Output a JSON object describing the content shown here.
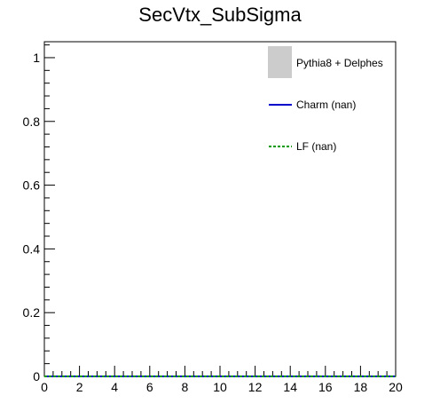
{
  "chart_data": {
    "type": "line",
    "title": "SecVtx_SubSigma",
    "xlabel": "",
    "ylabel": "",
    "xlim": [
      0,
      20
    ],
    "ylim": [
      0,
      1.05
    ],
    "x_ticks": [
      0,
      2,
      4,
      6,
      8,
      10,
      12,
      14,
      16,
      18,
      20
    ],
    "x_tick_labels": [
      "0",
      "2",
      "4",
      "6",
      "8",
      "10",
      "12",
      "14",
      "16",
      "18",
      "20"
    ],
    "y_ticks": [
      0,
      0.2,
      0.4,
      0.6,
      0.8,
      1
    ],
    "y_tick_labels": [
      "0",
      "0.2",
      "0.4",
      "0.6",
      "0.8",
      "1"
    ],
    "grid": false,
    "legend_position": "top-right",
    "series": [
      {
        "name": "Pythia8 + Delphes",
        "style": "filled-box",
        "color": "#cccccc",
        "x": [],
        "y": []
      },
      {
        "name": "Charm (nan)",
        "style": "solid",
        "color": "#0000cc",
        "x": [
          0,
          20
        ],
        "y": [
          0,
          0
        ]
      },
      {
        "name": "LF (nan)",
        "style": "dashed",
        "color": "#009900",
        "x": [
          0,
          20
        ],
        "y": [
          0,
          0
        ]
      }
    ]
  }
}
